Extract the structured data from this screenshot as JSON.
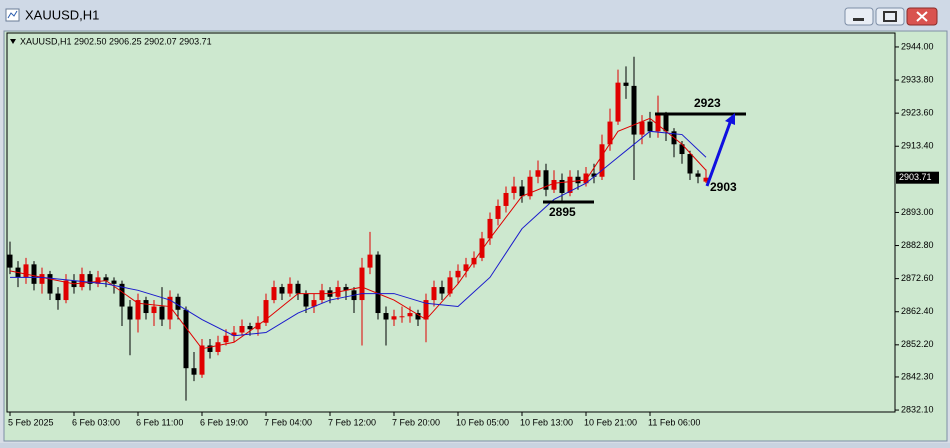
{
  "window": {
    "title": "XAUUSD,H1"
  },
  "chart_data": {
    "type": "candlestick",
    "title": "XAUUSD,H1  2902.50 2906.25 2902.07 2903.71",
    "up_color": "#e00000",
    "down_color": "#000000",
    "candles": [
      [
        2880,
        2884,
        2874,
        2876
      ],
      [
        2876,
        2878,
        2870,
        2873
      ],
      [
        2873,
        2879,
        2871,
        2877
      ],
      [
        2877,
        2878,
        2869,
        2871
      ],
      [
        2871,
        2876,
        2868,
        2874
      ],
      [
        2874,
        2875,
        2866,
        2868
      ],
      [
        2868,
        2870,
        2863,
        2866
      ],
      [
        2866,
        2874,
        2865,
        2872
      ],
      [
        2872,
        2874,
        2868,
        2870
      ],
      [
        2870,
        2876,
        2869,
        2874
      ],
      [
        2874,
        2875,
        2869,
        2871
      ],
      [
        2871,
        2875,
        2870,
        2873
      ],
      [
        2873,
        2874,
        2870,
        2872
      ],
      [
        2872,
        2873,
        2868,
        2871
      ],
      [
        2871,
        2872,
        2858,
        2864
      ],
      [
        2864,
        2866,
        2849,
        2860
      ],
      [
        2860,
        2868,
        2856,
        2866
      ],
      [
        2866,
        2867,
        2860,
        2862
      ],
      [
        2862,
        2866,
        2858,
        2864
      ],
      [
        2864,
        2870,
        2858,
        2860
      ],
      [
        2860,
        2869,
        2857,
        2867
      ],
      [
        2867,
        2868,
        2860,
        2863
      ],
      [
        2863,
        2864,
        2835,
        2845
      ],
      [
        2845,
        2850,
        2841,
        2843
      ],
      [
        2843,
        2854,
        2842,
        2852
      ],
      [
        2852,
        2854,
        2848,
        2850
      ],
      [
        2850,
        2855,
        2849,
        2853
      ],
      [
        2853,
        2857,
        2852,
        2855
      ],
      [
        2855,
        2858,
        2853,
        2856
      ],
      [
        2856,
        2860,
        2855,
        2858
      ],
      [
        2858,
        2859,
        2855,
        2857
      ],
      [
        2857,
        2861,
        2855,
        2859
      ],
      [
        2859,
        2868,
        2858,
        2866
      ],
      [
        2866,
        2872,
        2865,
        2870
      ],
      [
        2870,
        2871,
        2866,
        2868
      ],
      [
        2868,
        2873,
        2867,
        2871
      ],
      [
        2871,
        2872,
        2866,
        2868
      ],
      [
        2868,
        2869,
        2862,
        2864
      ],
      [
        2864,
        2868,
        2862,
        2866
      ],
      [
        2866,
        2871,
        2865,
        2869
      ],
      [
        2869,
        2870,
        2865,
        2867
      ],
      [
        2867,
        2872,
        2866,
        2870
      ],
      [
        2870,
        2871,
        2866,
        2869
      ],
      [
        2869,
        2870,
        2862,
        2866
      ],
      [
        2866,
        2879,
        2852,
        2876
      ],
      [
        2876,
        2887,
        2874,
        2880
      ],
      [
        2880,
        2881,
        2860,
        2862
      ],
      [
        2862,
        2864,
        2852,
        2860
      ],
      [
        2860,
        2863,
        2858,
        2861
      ],
      [
        2861,
        2864,
        2859,
        2861
      ],
      [
        2861,
        2864,
        2859,
        2862
      ],
      [
        2862,
        2863,
        2858,
        2860
      ],
      [
        2860,
        2868,
        2853,
        2866
      ],
      [
        2866,
        2872,
        2864,
        2870
      ],
      [
        2870,
        2872,
        2866,
        2868
      ],
      [
        2868,
        2875,
        2867,
        2873
      ],
      [
        2873,
        2877,
        2871,
        2875
      ],
      [
        2875,
        2879,
        2873,
        2877
      ],
      [
        2877,
        2881,
        2876,
        2879
      ],
      [
        2879,
        2887,
        2878,
        2885
      ],
      [
        2885,
        2893,
        2883,
        2891
      ],
      [
        2891,
        2897,
        2889,
        2895
      ],
      [
        2895,
        2901,
        2893,
        2899
      ],
      [
        2899,
        2904,
        2897,
        2901
      ],
      [
        2901,
        2903,
        2896,
        2898
      ],
      [
        2898,
        2906,
        2897,
        2904
      ],
      [
        2904,
        2909,
        2902,
        2906
      ],
      [
        2906,
        2908,
        2898,
        2900
      ],
      [
        2900,
        2906,
        2899,
        2903
      ],
      [
        2903,
        2905,
        2896,
        2899
      ],
      [
        2899,
        2906,
        2898,
        2904
      ],
      [
        2904,
        2906,
        2900,
        2902
      ],
      [
        2902,
        2907,
        2901,
        2905
      ],
      [
        2905,
        2908,
        2902,
        2904
      ],
      [
        2904,
        2917,
        2903,
        2914
      ],
      [
        2914,
        2925,
        2912,
        2921
      ],
      [
        2921,
        2937,
        2920,
        2933
      ],
      [
        2933,
        2938,
        2928,
        2932
      ],
      [
        2932,
        2941,
        2903,
        2917
      ],
      [
        2917,
        2923,
        2914,
        2921
      ],
      [
        2921,
        2924,
        2916,
        2918
      ],
      [
        2918,
        2929,
        2916,
        2923
      ],
      [
        2923,
        2924,
        2915,
        2918
      ],
      [
        2918,
        2919,
        2910,
        2914
      ],
      [
        2914,
        2915,
        2908,
        2911
      ],
      [
        2911,
        2912,
        2903,
        2905
      ],
      [
        2905,
        2906,
        2902,
        2904
      ],
      [
        2902.5,
        2906.25,
        2902.07,
        2903.71
      ]
    ],
    "series": [
      {
        "color": "#e00000",
        "x": [
          0,
          4,
          8,
          12,
          16,
          20,
          24,
          28,
          32,
          36,
          40,
          44,
          48,
          52,
          56,
          60,
          64,
          68,
          72,
          76,
          80,
          84,
          87
        ],
        "values": [
          2875,
          2873,
          2871,
          2872,
          2865,
          2864,
          2851,
          2853,
          2860,
          2868,
          2868,
          2870,
          2866,
          2860,
          2871,
          2885,
          2898,
          2902,
          2903,
          2918,
          2922,
          2914,
          2906
        ]
      },
      {
        "color": "#1a1acc",
        "x": [
          0,
          4,
          8,
          12,
          16,
          20,
          24,
          28,
          32,
          36,
          40,
          44,
          48,
          52,
          56,
          60,
          64,
          68,
          72,
          76,
          80,
          84,
          87
        ],
        "values": [
          2873,
          2873,
          2872,
          2871,
          2869,
          2866,
          2860,
          2855,
          2856,
          2862,
          2866,
          2868,
          2868,
          2865,
          2864,
          2873,
          2888,
          2897,
          2902,
          2910,
          2918,
          2917,
          2910
        ]
      }
    ],
    "ylim": [
      2831.5,
      2948.3
    ],
    "yticks": [
      {
        "value": 2944,
        "label": "2944.00"
      },
      {
        "value": 2933.8,
        "label": "2933.80"
      },
      {
        "value": 2923.6,
        "label": "2923.60"
      },
      {
        "value": 2913.4,
        "label": "2913.40"
      },
      {
        "value": 2893,
        "label": "2893.00"
      },
      {
        "value": 2882.8,
        "label": "2882.80"
      },
      {
        "value": 2872.6,
        "label": "2872.60"
      },
      {
        "value": 2862.4,
        "label": "2862.40"
      },
      {
        "value": 2852.2,
        "label": "2852.20"
      },
      {
        "value": 2842.3,
        "label": "2842.30"
      },
      {
        "value": 2832.1,
        "label": "2832.10"
      }
    ],
    "last_price": {
      "value": 2903.71,
      "label": "2903.71"
    },
    "xlim": [
      -0.375,
      110.625
    ],
    "xticks": [
      {
        "value": 0,
        "label": "5 Feb 2025"
      },
      {
        "value": 8,
        "label": "6 Feb 03:00"
      },
      {
        "value": 16,
        "label": "6 Feb 11:00"
      },
      {
        "value": 24,
        "label": "6 Feb 19:00"
      },
      {
        "value": 32,
        "label": "7 Feb 04:00"
      },
      {
        "value": 40,
        "label": "7 Feb 12:00"
      },
      {
        "value": 48,
        "label": "7 Feb 20:00"
      },
      {
        "value": 56,
        "label": "10 Feb 05:00"
      },
      {
        "value": 64,
        "label": "10 Feb 13:00"
      },
      {
        "value": 72,
        "label": "10 Feb 21:00"
      },
      {
        "value": 80,
        "label": "11 Feb 06:00"
      }
    ],
    "annotations": [
      "2923",
      "2895",
      "2903"
    ]
  }
}
